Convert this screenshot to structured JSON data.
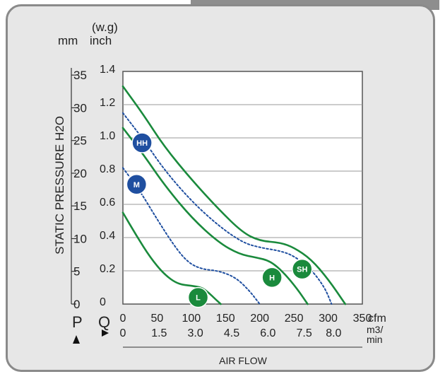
{
  "chart_data": {
    "type": "line",
    "title": "",
    "ylabel": "STATIC PRESSURE H2O",
    "xlabel": "AIR FLOW",
    "units": {
      "y_left": "mm",
      "y_right_top": "(w.g)",
      "y_right": "inch",
      "x_top": "cfm",
      "x_bottom": "m3/\nmin",
      "x_bottom_line1": "m3/",
      "x_bottom_line2": "min"
    },
    "symbols": {
      "p": "P",
      "q": "Q"
    },
    "y_mm_ticks": [
      "35",
      "30",
      "25",
      "20",
      "15",
      "10",
      "5",
      "0"
    ],
    "y_mm_values": [
      35,
      30,
      25,
      20,
      15,
      10,
      5,
      0
    ],
    "y_inch_ticks": [
      "1.4",
      "1.2",
      "1.0",
      "0.8",
      "0.6",
      "0.4",
      "0.2",
      "0"
    ],
    "y_inch_values": [
      1.4,
      1.2,
      1.0,
      0.8,
      0.6,
      0.4,
      0.2,
      0
    ],
    "x_cfm_ticks": [
      "0",
      "50",
      "100",
      "150",
      "200",
      "250",
      "300",
      "350"
    ],
    "x_cfm_values": [
      0,
      50,
      100,
      150,
      200,
      250,
      300,
      350
    ],
    "x_m3_ticks": [
      "0",
      "1.5",
      "3.0",
      "4.5",
      "6.0",
      "7.5",
      "8.0"
    ],
    "x_m3_positions_cfm": [
      0,
      53,
      106,
      159,
      212,
      265,
      308
    ],
    "xlim": [
      0,
      350
    ],
    "ylim": [
      0,
      1.4
    ],
    "grid": true,
    "series": [
      {
        "name": "SH",
        "color": "#1a8a3c",
        "dash": false,
        "x": [
          0,
          30,
          60,
          100,
          140,
          175,
          200,
          230,
          250,
          275,
          300,
          325
        ],
        "y": [
          1.31,
          1.14,
          0.95,
          0.75,
          0.57,
          0.43,
          0.38,
          0.37,
          0.34,
          0.27,
          0.15,
          0.0
        ]
      },
      {
        "name": "HH",
        "color": "#1f4fa0",
        "dash": true,
        "x": [
          0,
          30,
          60,
          100,
          140,
          175,
          200,
          230,
          250,
          275,
          295,
          305
        ],
        "y": [
          1.15,
          0.99,
          0.81,
          0.62,
          0.47,
          0.37,
          0.34,
          0.32,
          0.29,
          0.21,
          0.1,
          0.0
        ]
      },
      {
        "name": "H",
        "color": "#1a8a3c",
        "dash": false,
        "x": [
          0,
          30,
          60,
          100,
          140,
          170,
          195,
          215,
          235,
          255,
          270
        ],
        "y": [
          1.06,
          0.9,
          0.72,
          0.52,
          0.37,
          0.3,
          0.28,
          0.26,
          0.19,
          0.09,
          0.0
        ]
      },
      {
        "name": "M",
        "color": "#1f4fa0",
        "dash": true,
        "x": [
          0,
          25,
          50,
          75,
          95,
          115,
          140,
          165,
          185,
          200
        ],
        "y": [
          0.82,
          0.68,
          0.51,
          0.35,
          0.25,
          0.21,
          0.2,
          0.16,
          0.08,
          0.0
        ]
      },
      {
        "name": "L",
        "color": "#1a8a3c",
        "dash": false,
        "x": [
          0,
          20,
          40,
          60,
          80,
          100,
          115,
          125,
          135,
          143
        ],
        "y": [
          0.55,
          0.41,
          0.28,
          0.18,
          0.12,
          0.11,
          0.1,
          0.07,
          0.03,
          0.0
        ]
      }
    ],
    "labels": [
      {
        "text": "HH",
        "color": "#1f4fa0",
        "x": 28,
        "y": 0.97
      },
      {
        "text": "M",
        "color": "#1f4fa0",
        "x": 20,
        "y": 0.72
      },
      {
        "text": "SH",
        "color": "#1a8a3c",
        "x": 262,
        "y": 0.21
      },
      {
        "text": "H",
        "color": "#1a8a3c",
        "x": 218,
        "y": 0.16
      },
      {
        "text": "L",
        "color": "#1a8a3c",
        "x": 110,
        "y": 0.04
      }
    ]
  }
}
